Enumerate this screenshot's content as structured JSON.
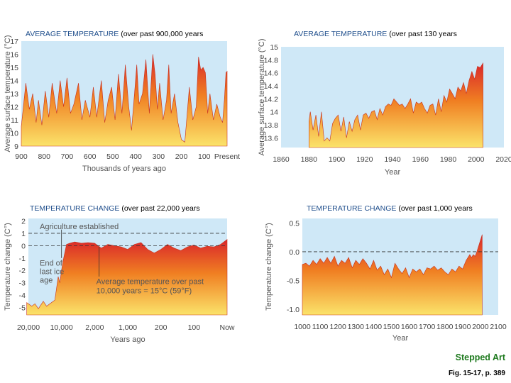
{
  "colors": {
    "plot_bg": "#cfe8f7",
    "fill_top": "#d9262b",
    "fill_mid": "#f07f22",
    "fill_bottom": "#fbe36a",
    "title_caps": "#1f4e8c",
    "credit": "#1e7a1e"
  },
  "footer": {
    "credit": "Stepped Art",
    "figure": "Fig. 15-17, p. 389"
  },
  "chart_data": [
    {
      "type": "area",
      "title_caps": "AVERAGE TEMPERATURE",
      "title_rest": " (over past 900,000 years",
      "xlabel": "Thousands of years ago",
      "ylabel": "Average surface temperature (°C)",
      "xlim": [
        900,
        0
      ],
      "ylim": [
        9,
        17
      ],
      "yticks": [
        9,
        10,
        11,
        12,
        13,
        14,
        15,
        16,
        17
      ],
      "xticks": [
        {
          "v": 900,
          "label": "900"
        },
        {
          "v": 800,
          "label": "800"
        },
        {
          "v": 700,
          "label": "700"
        },
        {
          "v": 600,
          "label": "600"
        },
        {
          "v": 500,
          "label": "500"
        },
        {
          "v": 400,
          "label": "400"
        },
        {
          "v": 300,
          "label": "300"
        },
        {
          "v": 200,
          "label": "200"
        },
        {
          "v": 100,
          "label": "100"
        },
        {
          "v": 0,
          "label": "Present"
        }
      ],
      "x": [
        900,
        880,
        865,
        850,
        835,
        825,
        810,
        795,
        780,
        765,
        745,
        730,
        715,
        700,
        685,
        670,
        650,
        635,
        620,
        600,
        585,
        570,
        550,
        535,
        520,
        505,
        490,
        475,
        460,
        445,
        430,
        418,
        405,
        395,
        385,
        370,
        355,
        340,
        325,
        315,
        305,
        295,
        280,
        265,
        255,
        245,
        230,
        215,
        200,
        185,
        165,
        150,
        135,
        125,
        115,
        105,
        95,
        85,
        75,
        60,
        45,
        30,
        20,
        12,
        5,
        0
      ],
      "values": [
        10.5,
        13.8,
        11.8,
        13.0,
        10.8,
        12.5,
        10.6,
        13.2,
        11.2,
        13.8,
        11.5,
        14.0,
        12.0,
        14.2,
        11.5,
        12.2,
        13.8,
        11.0,
        12.5,
        11.2,
        13.5,
        11.2,
        14.0,
        10.8,
        12.5,
        13.5,
        11.0,
        14.5,
        11.5,
        15.2,
        12.0,
        10.2,
        13.0,
        15.2,
        12.2,
        13.0,
        15.6,
        11.5,
        16.0,
        14.5,
        11.8,
        13.8,
        11.0,
        12.5,
        15.2,
        11.5,
        13.0,
        10.8,
        9.5,
        9.3,
        13.5,
        11.0,
        12.0,
        15.8,
        14.8,
        15.0,
        14.6,
        11.5,
        13.0,
        11.0,
        12.2,
        11.2,
        10.8,
        12.5,
        14.6,
        14.7
      ]
    },
    {
      "type": "area",
      "title_caps": "AVERAGE TEMPERATURE",
      "title_rest": " (over past 130 years",
      "xlabel": "Year",
      "ylabel": "Average surface temperature (°C)",
      "xlim": [
        1860,
        2020
      ],
      "ylim": [
        13.45,
        15.0
      ],
      "yticks": [
        13.6,
        13.8,
        14.0,
        14.2,
        14.4,
        14.6,
        14.8,
        15.0
      ],
      "xticks": [
        {
          "v": 1860,
          "label": "1860"
        },
        {
          "v": 1880,
          "label": "1880"
        },
        {
          "v": 1900,
          "label": "1900"
        },
        {
          "v": 1920,
          "label": "1920"
        },
        {
          "v": 1940,
          "label": "1940"
        },
        {
          "v": 1960,
          "label": "1960"
        },
        {
          "v": 1980,
          "label": "1980"
        },
        {
          "v": 2000,
          "label": "2000"
        },
        {
          "v": 2020,
          "label": "2020"
        }
      ],
      "x": [
        1880,
        1881,
        1883,
        1885,
        1887,
        1889,
        1891,
        1893,
        1895,
        1897,
        1899,
        1901,
        1903,
        1905,
        1907,
        1909,
        1911,
        1913,
        1915,
        1917,
        1919,
        1921,
        1923,
        1925,
        1927,
        1929,
        1931,
        1933,
        1935,
        1937,
        1939,
        1941,
        1943,
        1945,
        1947,
        1949,
        1951,
        1953,
        1955,
        1957,
        1959,
        1961,
        1963,
        1965,
        1967,
        1969,
        1971,
        1973,
        1975,
        1977,
        1979,
        1981,
        1983,
        1985,
        1987,
        1989,
        1991,
        1993,
        1995,
        1997,
        1999,
        2001,
        2003,
        2005
      ],
      "values": [
        13.85,
        14.0,
        13.72,
        13.95,
        13.62,
        14.0,
        13.55,
        13.6,
        13.55,
        13.82,
        13.9,
        13.95,
        13.7,
        13.92,
        13.6,
        13.85,
        13.7,
        13.88,
        13.95,
        13.72,
        13.95,
        13.98,
        13.9,
        14.0,
        14.02,
        13.88,
        14.05,
        13.95,
        14.08,
        14.12,
        14.1,
        14.2,
        14.15,
        14.1,
        14.12,
        14.05,
        14.12,
        14.2,
        13.98,
        14.15,
        14.12,
        14.15,
        14.05,
        13.98,
        14.1,
        14.12,
        13.95,
        14.2,
        14.0,
        14.25,
        14.15,
        14.35,
        14.28,
        14.2,
        14.38,
        14.32,
        14.45,
        14.28,
        14.48,
        14.62,
        14.5,
        14.7,
        14.68,
        14.75
      ]
    },
    {
      "type": "area",
      "title_caps": "TEMPERATURE CHANGE",
      "title_rest": " (over past 22,000 years",
      "xlabel": "Years ago",
      "ylabel": "Temperature change (C°)",
      "ylim": [
        -5.6,
        2.2
      ],
      "yticks": [
        2,
        1,
        0,
        -1,
        -2,
        -3,
        -4,
        -5
      ],
      "xticks": [
        {
          "v": 0,
          "label": "20,000"
        },
        {
          "v": 1,
          "label": "10,000"
        },
        {
          "v": 2,
          "label": "2,000"
        },
        {
          "v": 3,
          "label": "1,000"
        },
        {
          "v": 4,
          "label": "200"
        },
        {
          "v": 5,
          "label": "100"
        },
        {
          "v": 6,
          "label": "Now"
        }
      ],
      "x_scale": "categorical-segments",
      "reference_lines": [
        1,
        0
      ],
      "annotations": [
        "Agriculture established",
        "End of last ice age",
        "Average temperature over past 10,000 years = 15°C (59°F)"
      ],
      "x": [
        -0.05,
        0.1,
        0.2,
        0.3,
        0.45,
        0.55,
        0.65,
        0.8,
        0.9,
        0.95,
        1.0,
        1.05,
        1.15,
        1.25,
        1.4,
        1.6,
        1.8,
        2.0,
        2.2,
        2.4,
        2.6,
        2.8,
        3.0,
        3.2,
        3.4,
        3.6,
        3.8,
        4.0,
        4.2,
        4.4,
        4.6,
        4.8,
        5.0,
        5.2,
        5.4,
        5.6,
        5.8,
        5.95,
        6.0
      ],
      "values": [
        -4.6,
        -4.9,
        -4.7,
        -5.1,
        -4.5,
        -4.9,
        -4.7,
        -4.4,
        -2.5,
        -3.0,
        -2.0,
        -1.2,
        0.1,
        0.2,
        0.3,
        0.2,
        0.25,
        0.2,
        -0.2,
        0.1,
        0.0,
        -0.1,
        -0.3,
        0.1,
        0.25,
        -0.3,
        -0.6,
        -0.3,
        0.1,
        -0.2,
        -0.4,
        -0.1,
        0.05,
        -0.2,
        -0.05,
        -0.1,
        0.1,
        0.4,
        0.5
      ]
    },
    {
      "type": "area",
      "title_caps": "TEMPERATURE CHANGE",
      "title_rest": " (over past 1,000 years",
      "xlabel": "Year",
      "ylabel": "Temperature change (C°)",
      "xlim": [
        1000,
        2100
      ],
      "ylim": [
        -1.1,
        0.58
      ],
      "yticks": [
        0.5,
        0.0,
        -0.5,
        -1.0
      ],
      "yticklabels": [
        "0.5",
        "0.0",
        "-0.5",
        "-1.0"
      ],
      "xticks": [
        {
          "v": 1000,
          "label": "1000"
        },
        {
          "v": 1100,
          "label": "1100"
        },
        {
          "v": 1200,
          "label": "1200"
        },
        {
          "v": 1300,
          "label": "1300"
        },
        {
          "v": 1400,
          "label": "1400"
        },
        {
          "v": 1500,
          "label": "1500"
        },
        {
          "v": 1600,
          "label": "1600"
        },
        {
          "v": 1700,
          "label": "1700"
        },
        {
          "v": 1800,
          "label": "1800"
        },
        {
          "v": 1900,
          "label": "1900"
        },
        {
          "v": 2000,
          "label": "2000"
        },
        {
          "v": 2100,
          "label": "2100"
        }
      ],
      "reference_lines": [
        0
      ],
      "x": [
        1000,
        1020,
        1040,
        1060,
        1080,
        1100,
        1120,
        1140,
        1160,
        1180,
        1200,
        1220,
        1240,
        1260,
        1280,
        1300,
        1320,
        1340,
        1360,
        1380,
        1400,
        1420,
        1440,
        1460,
        1480,
        1500,
        1520,
        1540,
        1560,
        1580,
        1600,
        1620,
        1640,
        1660,
        1680,
        1700,
        1720,
        1740,
        1760,
        1780,
        1800,
        1820,
        1840,
        1860,
        1880,
        1900,
        1920,
        1940,
        1950,
        1960,
        1970,
        1980,
        1990,
        2000,
        2010
      ],
      "values": [
        -0.22,
        -0.2,
        -0.25,
        -0.15,
        -0.22,
        -0.12,
        -0.2,
        -0.1,
        -0.2,
        -0.08,
        -0.25,
        -0.15,
        -0.2,
        -0.1,
        -0.28,
        -0.15,
        -0.22,
        -0.12,
        -0.2,
        -0.3,
        -0.15,
        -0.32,
        -0.25,
        -0.4,
        -0.3,
        -0.45,
        -0.2,
        -0.3,
        -0.38,
        -0.28,
        -0.45,
        -0.3,
        -0.35,
        -0.3,
        -0.4,
        -0.28,
        -0.3,
        -0.25,
        -0.32,
        -0.28,
        -0.35,
        -0.4,
        -0.3,
        -0.35,
        -0.25,
        -0.3,
        -0.15,
        -0.05,
        -0.1,
        -0.05,
        -0.08,
        0.0,
        0.1,
        0.2,
        0.3
      ]
    }
  ]
}
